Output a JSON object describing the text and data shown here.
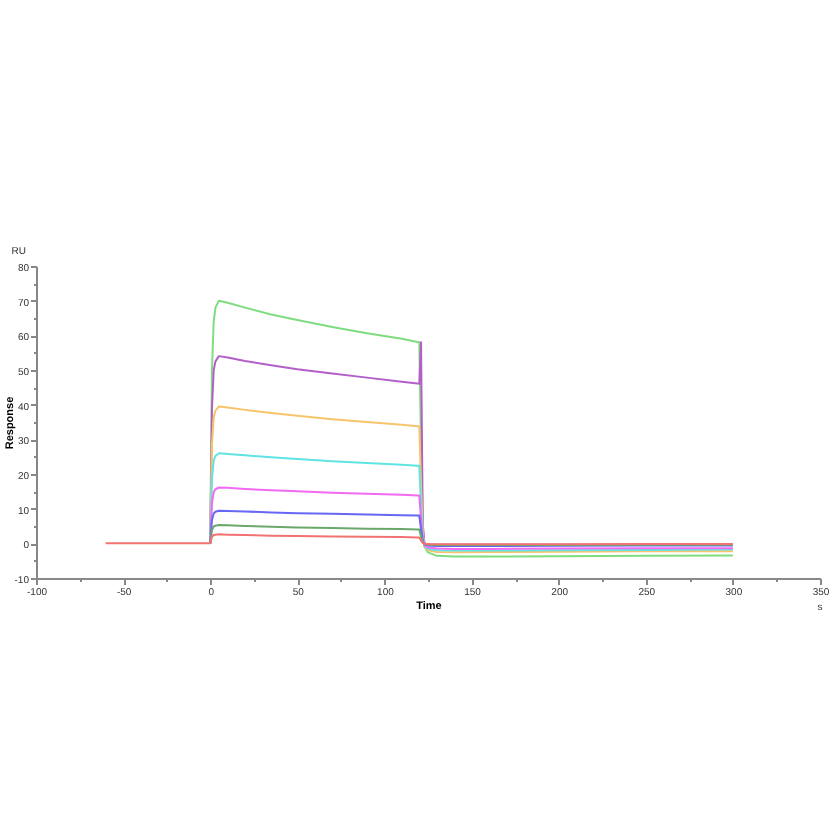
{
  "chart_data": {
    "type": "line",
    "xlabel": "Time",
    "ylabel": "Response",
    "annotations": [
      "RU",
      "s"
    ],
    "x": [
      -60,
      -1,
      0,
      1,
      2,
      3,
      5,
      10,
      20,
      35,
      50,
      70,
      90,
      110,
      119,
      120,
      121,
      122,
      123,
      125,
      130,
      140,
      160,
      200,
      250,
      300
    ],
    "xlim": [
      -100,
      350
    ],
    "xticks": [
      -100,
      {
        "value": -75,
        "label": null
      },
      -50,
      {
        "value": -25,
        "label": null
      },
      0,
      {
        "value": 25,
        "label": null
      },
      50,
      {
        "value": 75,
        "label": null
      },
      100,
      {
        "value": 125,
        "label": null
      },
      150,
      {
        "value": 175,
        "label": null
      },
      200,
      {
        "value": 225,
        "label": null
      },
      250,
      {
        "value": 275,
        "label": null
      },
      300,
      {
        "value": 325,
        "label": null
      },
      350
    ],
    "ylim": [
      -10,
      80
    ],
    "yticks": [
      -10,
      {
        "value": -5,
        "label": null
      },
      0,
      {
        "value": 5,
        "label": null
      },
      10,
      {
        "value": 15,
        "label": null
      },
      20,
      {
        "value": 25,
        "label": null
      },
      30,
      {
        "value": 35,
        "label": null
      },
      40,
      {
        "value": 45,
        "label": null
      },
      50,
      {
        "value": 55,
        "label": null
      },
      60,
      {
        "value": 65,
        "label": null
      },
      70,
      {
        "value": 75,
        "label": null
      },
      80
    ],
    "series": [
      {
        "color": "#7fdc7f",
        "values": [
          null,
          null,
          0,
          50,
          64,
          68,
          70,
          69.4,
          68,
          66,
          64.4,
          62.4,
          60.6,
          59,
          58.1,
          58,
          29,
          6,
          -1,
          -2.6,
          -3.6,
          -3.8,
          -3.8,
          -3.7,
          -3.6,
          -3.5
        ]
      },
      {
        "color": "#b25fc9",
        "values": [
          null,
          null,
          0,
          39,
          50,
          52.5,
          54,
          53.6,
          52.6,
          51.4,
          50.2,
          49,
          47.8,
          46.6,
          46.1,
          46,
          58,
          5,
          0,
          -0.3,
          -0.4,
          -0.4,
          -0.4,
          -0.4,
          -0.4,
          -0.4
        ]
      },
      {
        "color": "#f7c46c",
        "values": [
          null,
          null,
          0,
          28.5,
          36.3,
          38.3,
          39.5,
          39.2,
          38.5,
          37.6,
          36.8,
          35.8,
          35,
          34.2,
          33.8,
          33.7,
          17,
          3,
          -1,
          -2,
          -2.5,
          -2.6,
          -2.5,
          -2.4,
          -2.3,
          -2.3
        ]
      },
      {
        "color": "#5fe3e3",
        "values": [
          null,
          null,
          0,
          18.7,
          23.9,
          25.2,
          26,
          25.8,
          25.4,
          24.8,
          24.3,
          23.7,
          23.2,
          22.7,
          22.4,
          22.4,
          11,
          2,
          -0.8,
          -1.6,
          -2,
          -2.1,
          -2.1,
          -2,
          -1.9,
          -1.8
        ]
      },
      {
        "color": "#f26af2",
        "values": [
          null,
          null,
          0,
          11.6,
          14.8,
          15.6,
          16.1,
          16,
          15.7,
          15.3,
          15,
          14.6,
          14.3,
          14,
          13.8,
          13.8,
          7,
          1.2,
          -0.6,
          -1.2,
          -1.5,
          -1.6,
          -1.6,
          -1.5,
          -1.4,
          -1.4
        ]
      },
      {
        "color": "#6767f5",
        "values": [
          null,
          null,
          0,
          6.8,
          8.6,
          9.1,
          9.4,
          9.3,
          9.2,
          8.9,
          8.7,
          8.5,
          8.3,
          8.1,
          8,
          8,
          4,
          0.6,
          -0.3,
          -0.6,
          -0.8,
          -0.8,
          -0.8,
          -0.7,
          -0.6,
          -0.6
        ]
      },
      {
        "color": "#6aa86a",
        "values": [
          null,
          null,
          0,
          3.8,
          4.9,
          5.1,
          5.3,
          5.2,
          5,
          4.8,
          4.6,
          4.4,
          4.2,
          4.1,
          4,
          4,
          2,
          0.3,
          -0.2,
          -0.4,
          -0.5,
          -0.5,
          -0.5,
          -0.5,
          -0.4,
          -0.4
        ]
      },
      {
        "color": "#f27272",
        "values": [
          0,
          0,
          0,
          1.9,
          2.4,
          2.5,
          2.6,
          2.5,
          2.4,
          2.2,
          2.1,
          2,
          1.9,
          1.8,
          1.7,
          1.7,
          0.8,
          0.1,
          -0.1,
          -0.2,
          -0.3,
          -0.3,
          -0.3,
          -0.3,
          -0.2,
          -0.2
        ]
      }
    ]
  }
}
